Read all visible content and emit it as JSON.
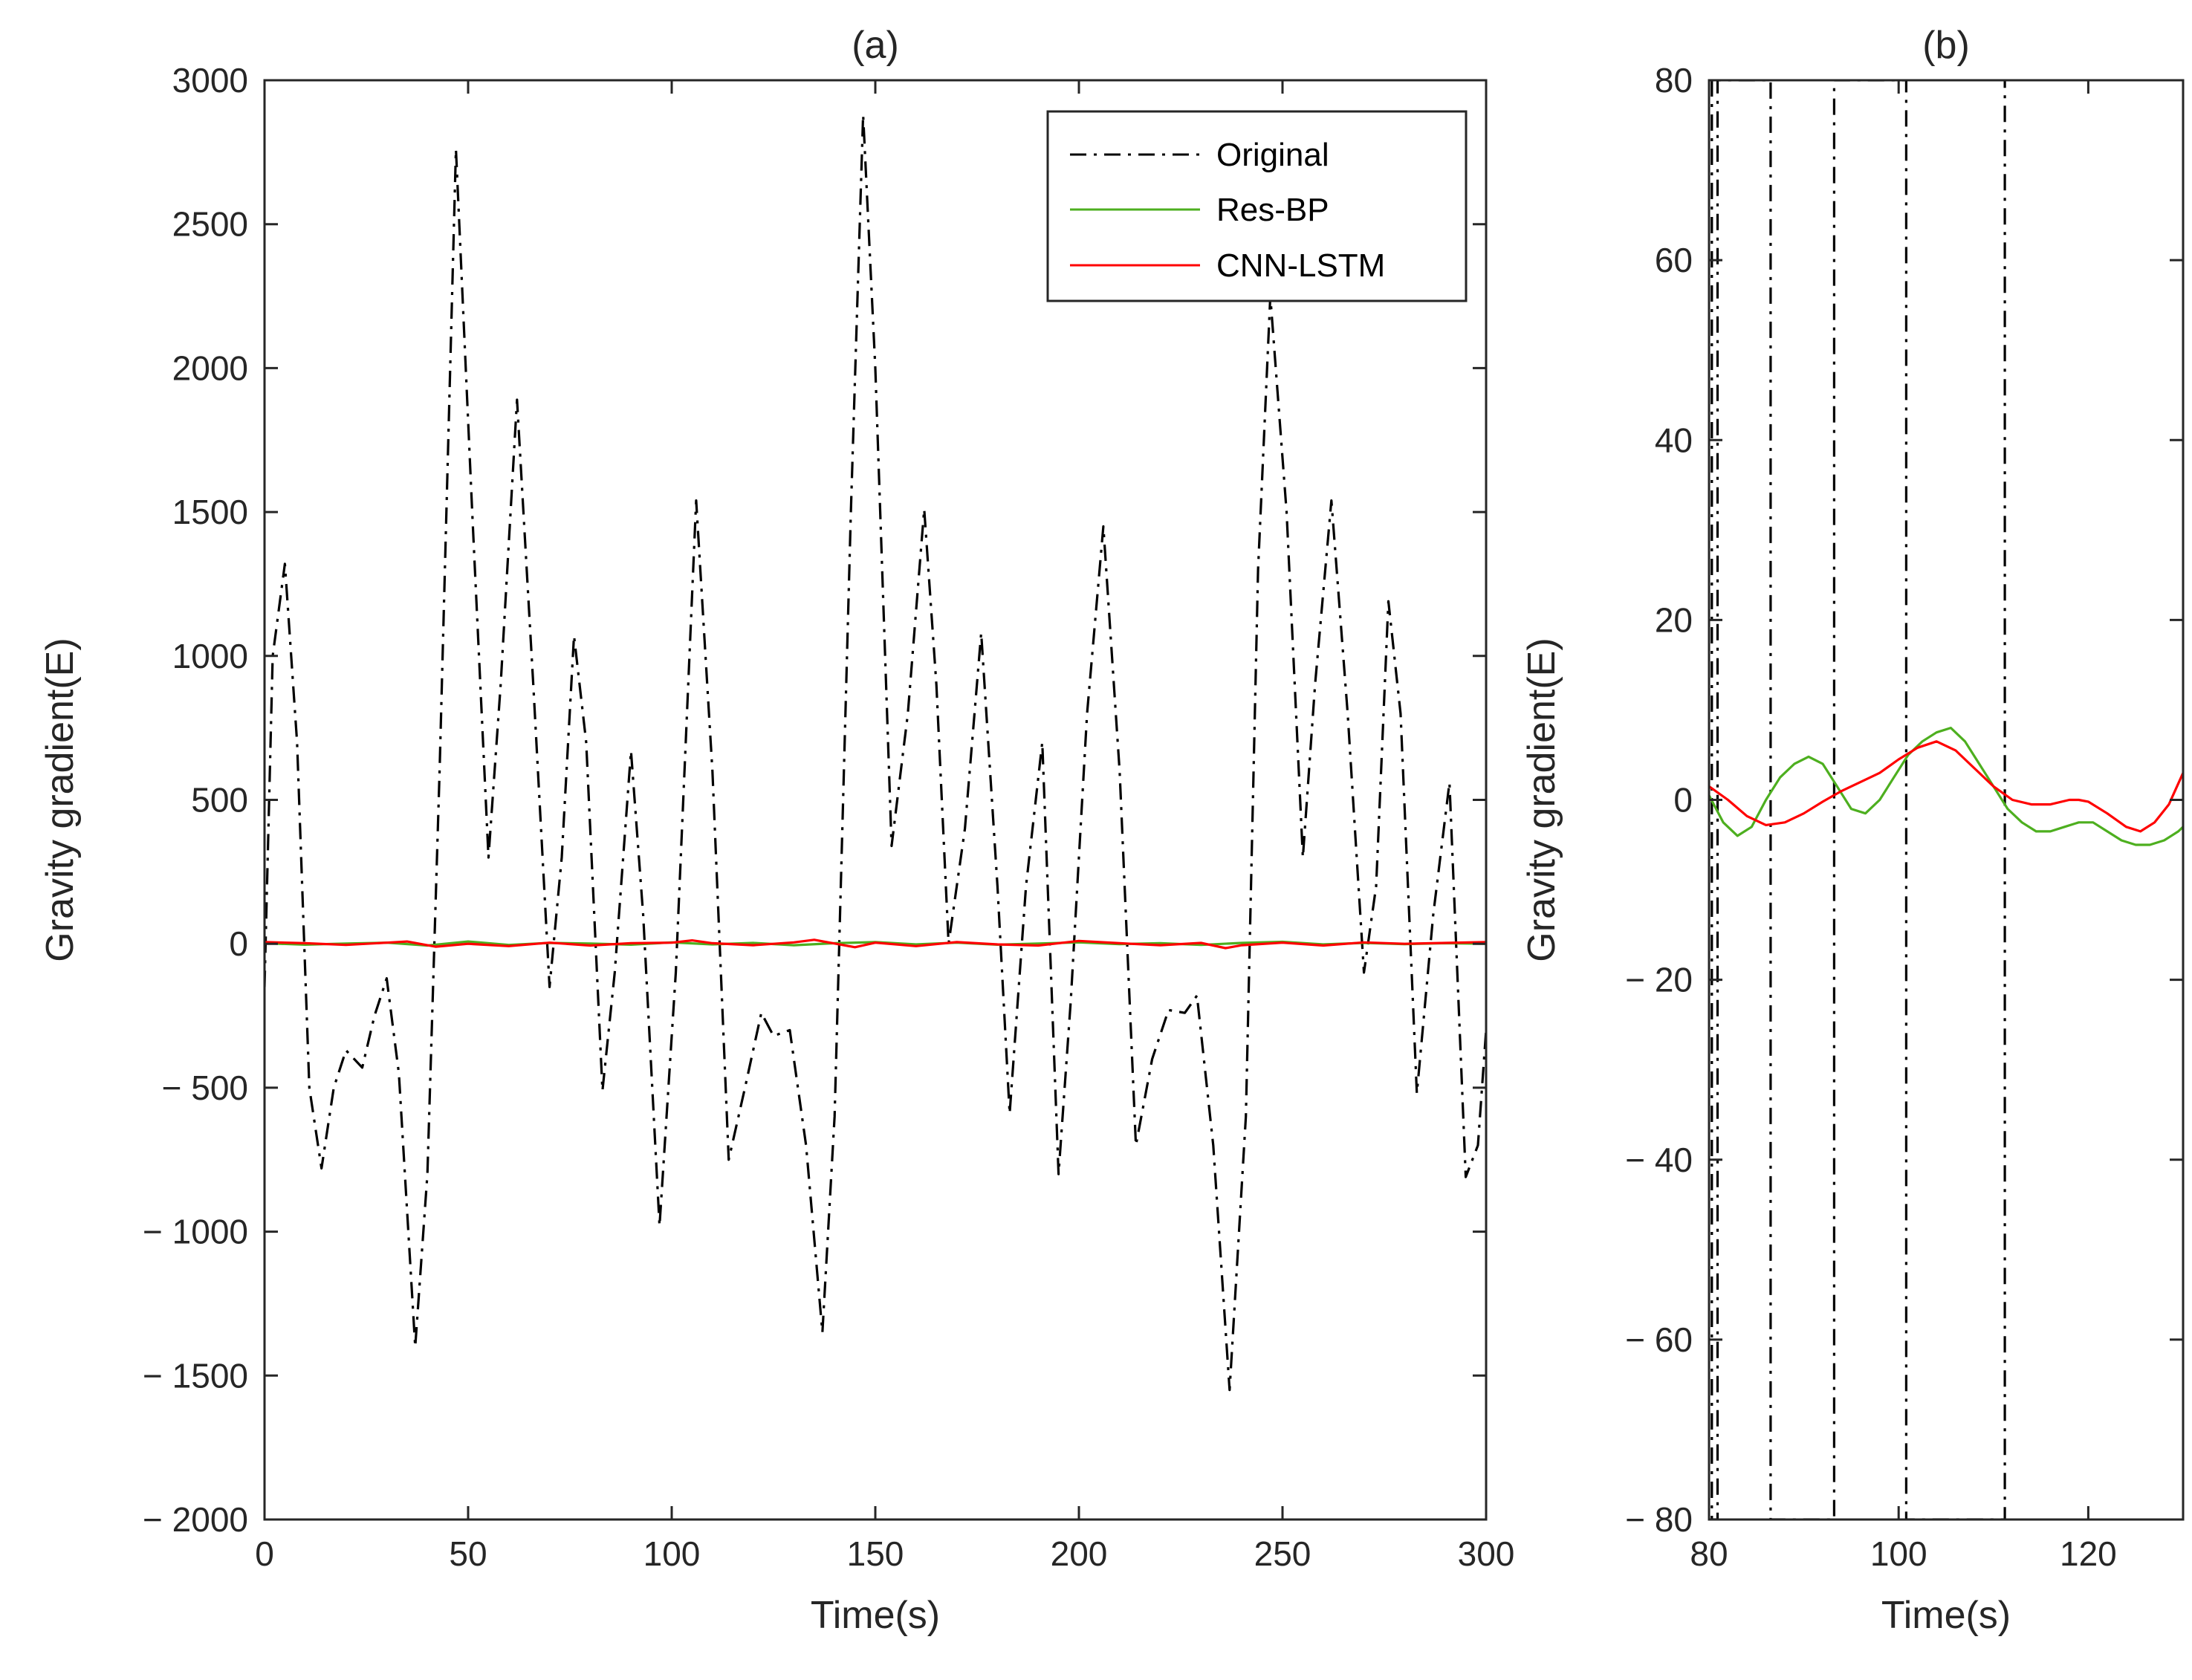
{
  "chart_data": [
    {
      "id": "a",
      "type": "line",
      "title": "(a)",
      "xlabel": "Time(s)",
      "ylabel": "Gravity gradient(E)",
      "xlim": [
        0,
        300
      ],
      "ylim": [
        -2000,
        3000
      ],
      "xticks": [
        0,
        50,
        100,
        150,
        200,
        250,
        300
      ],
      "xtick_labels": [
        "0",
        "50",
        "100",
        "150",
        "200",
        "250",
        "300"
      ],
      "yticks": [
        -2000,
        -1500,
        -1000,
        -500,
        0,
        500,
        1000,
        1500,
        2000,
        2500,
        3000
      ],
      "ytick_labels": [
        "− 2000",
        "− 1500",
        "− 1000",
        "− 500",
        "0",
        "500",
        "1000",
        "1500",
        "2000",
        "2500",
        "3000"
      ],
      "legend": {
        "location": "top-right",
        "entries": [
          "Original",
          "Res-BP",
          "CNN-LSTM"
        ]
      },
      "series": [
        {
          "name": "Original",
          "color": "#000000",
          "style": "dashdot",
          "x": [
            0,
            2,
            5,
            8,
            11,
            14,
            17,
            20,
            24,
            27,
            30,
            33,
            37,
            40,
            43,
            47,
            51,
            55,
            58,
            62,
            66,
            70,
            73,
            76,
            79,
            83,
            86,
            90,
            93,
            97,
            101,
            106,
            110,
            114,
            118,
            122,
            125,
            129,
            133,
            137,
            140,
            144,
            147,
            150,
            154,
            158,
            162,
            165,
            168,
            172,
            176,
            180,
            183,
            187,
            191,
            195,
            198,
            202,
            206,
            210,
            214,
            218,
            222,
            226,
            229,
            233,
            237,
            241,
            244,
            247,
            251,
            255,
            258,
            262,
            266,
            270,
            273,
            276,
            279,
            283,
            287,
            291,
            295,
            298,
            300
          ],
          "y": [
            -150,
            1000,
            1320,
            700,
            -500,
            -780,
            -500,
            -370,
            -430,
            -250,
            -120,
            -450,
            -1400,
            -800,
            600,
            2760,
            1500,
            300,
            900,
            1890,
            900,
            -150,
            300,
            1070,
            700,
            -510,
            -100,
            670,
            100,
            -980,
            -100,
            1540,
            600,
            -750,
            -500,
            -240,
            -320,
            -300,
            -700,
            -1350,
            -600,
            1500,
            2880,
            2000,
            340,
            800,
            1510,
            900,
            0,
            400,
            1080,
            200,
            -590,
            200,
            700,
            -800,
            -200,
            800,
            1450,
            600,
            -700,
            -400,
            -230,
            -240,
            -180,
            -700,
            -1550,
            -600,
            1300,
            2250,
            1500,
            300,
            900,
            1540,
            800,
            -100,
            200,
            1190,
            800,
            -520,
            100,
            560,
            -810,
            -700,
            -300
          ]
        },
        {
          "name": "Res-BP",
          "color": "#4daf1f",
          "style": "solid",
          "x": [
            0,
            10,
            20,
            30,
            40,
            50,
            60,
            70,
            80,
            90,
            100,
            110,
            120,
            130,
            140,
            150,
            160,
            170,
            180,
            190,
            200,
            210,
            220,
            230,
            240,
            250,
            260,
            270,
            280,
            290,
            300
          ],
          "y": [
            2,
            -3,
            1,
            4,
            -6,
            8,
            -4,
            3,
            1,
            -3,
            5,
            -2,
            3,
            -5,
            2,
            6,
            -2,
            4,
            -3,
            1,
            5,
            -1,
            2,
            -4,
            3,
            7,
            -2,
            3,
            -1,
            2,
            0
          ]
        },
        {
          "name": "CNN-LSTM",
          "color": "#ff0000",
          "style": "solid",
          "x": [
            0,
            10,
            20,
            30,
            35,
            42,
            50,
            60,
            70,
            80,
            90,
            100,
            105,
            110,
            120,
            130,
            135,
            140,
            145,
            150,
            160,
            170,
            180,
            190,
            200,
            210,
            220,
            230,
            236,
            240,
            250,
            260,
            270,
            280,
            290,
            300
          ],
          "y": [
            6,
            2,
            -4,
            4,
            8,
            -10,
            0,
            -8,
            4,
            -6,
            2,
            4,
            12,
            2,
            -5,
            5,
            14,
            1,
            -12,
            4,
            -8,
            6,
            -2,
            -6,
            10,
            2,
            -5,
            3,
            -15,
            -5,
            4,
            -6,
            5,
            0,
            3,
            6
          ]
        }
      ]
    },
    {
      "id": "b",
      "type": "line",
      "title": "(b)",
      "xlabel": "Time(s)",
      "ylabel": "Gravity gradient(E)",
      "xlim": [
        80,
        130
      ],
      "ylim": [
        -80,
        80
      ],
      "xticks": [
        80,
        100,
        120
      ],
      "xtick_labels": [
        "80",
        "100",
        "120"
      ],
      "yticks": [
        -80,
        -60,
        -40,
        -20,
        0,
        20,
        40,
        60,
        80
      ],
      "ytick_labels": [
        "− 80",
        "− 60",
        "− 40",
        "− 20",
        "0",
        "20",
        "40",
        "60",
        "80"
      ],
      "series": [
        {
          "name": "Original",
          "color": "#000000",
          "style": "dashdot",
          "x": [
            80.3,
            80.3,
            80.9,
            80.9,
            86.5,
            86.5,
            93.2,
            93.2,
            100.8,
            100.8,
            111.2,
            111.2
          ],
          "y": [
            80,
            -80,
            -80,
            80,
            80,
            -80,
            -80,
            80,
            80,
            -80,
            -80,
            80
          ]
        },
        {
          "name": "Res-BP",
          "color": "#4daf1f",
          "style": "solid",
          "x": [
            80,
            81.5,
            83,
            84.5,
            86,
            87.5,
            89,
            90.5,
            92,
            93.5,
            95,
            96.5,
            98,
            99.5,
            101,
            102.5,
            104,
            105.5,
            107,
            108.5,
            110,
            111.5,
            113,
            114.5,
            116,
            117.5,
            119,
            120.5,
            122,
            123.5,
            125,
            126.5,
            128,
            129.5,
            130
          ],
          "y": [
            0.5,
            -2.5,
            -4,
            -3,
            0,
            2.5,
            4,
            4.8,
            4,
            1.5,
            -1,
            -1.5,
            0,
            2.5,
            5,
            6.5,
            7.5,
            8,
            6.5,
            4,
            1.5,
            -1,
            -2.5,
            -3.5,
            -3.5,
            -3,
            -2.5,
            -2.5,
            -3.5,
            -4.5,
            -5,
            -5,
            -4.5,
            -3.5,
            -3
          ]
        },
        {
          "name": "CNN-LSTM",
          "color": "#ff0000",
          "style": "solid",
          "x": [
            80,
            82,
            84,
            86,
            88,
            90,
            92,
            94,
            96,
            98,
            100,
            102,
            104,
            106,
            108,
            110,
            112,
            114,
            116,
            118,
            119,
            120,
            122,
            124,
            125.5,
            127,
            128.5,
            130
          ],
          "y": [
            1.5,
            0,
            -1.8,
            -2.8,
            -2.5,
            -1.5,
            -0.2,
            1,
            2,
            3,
            4.5,
            5.8,
            6.5,
            5.5,
            3.5,
            1.5,
            0,
            -0.5,
            -0.5,
            0,
            0,
            -0.2,
            -1.5,
            -3,
            -3.5,
            -2.5,
            -0.5,
            3
          ]
        }
      ]
    }
  ]
}
